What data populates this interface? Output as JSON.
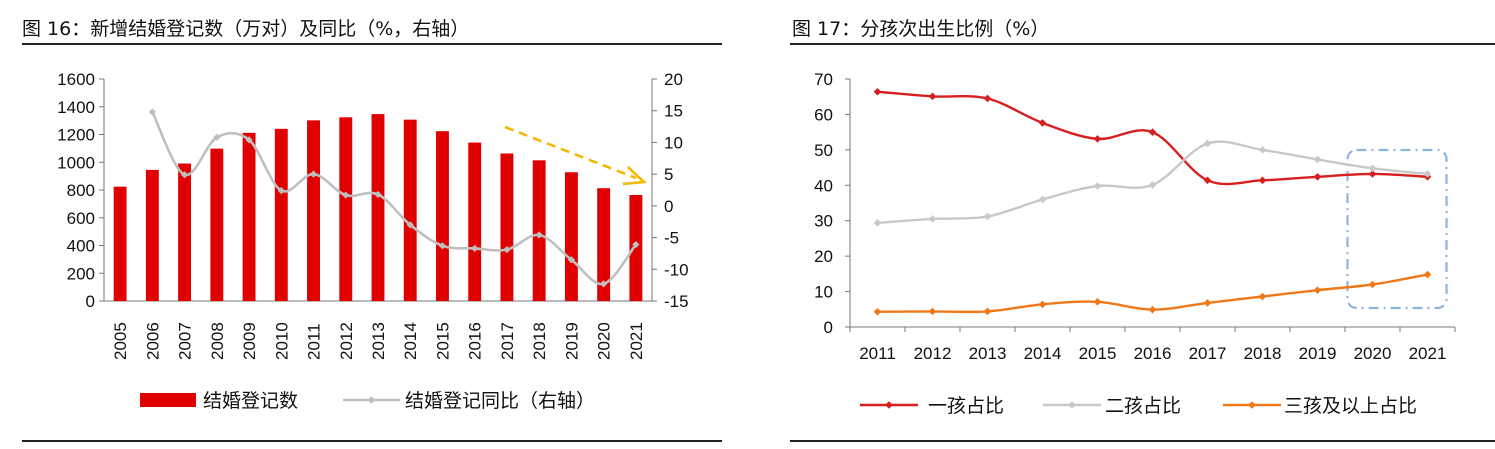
{
  "left": {
    "figure_title": "图 16：新增结婚登记数（万对）及同比（%，右轴）"
  },
  "right": {
    "figure_title": "图 17：分孩次出生比例（%）"
  },
  "chart_data": [
    {
      "type": "bar",
      "secondary_type": "line",
      "categories": [
        "2005",
        "2006",
        "2007",
        "2008",
        "2009",
        "2010",
        "2011",
        "2012",
        "2013",
        "2014",
        "2015",
        "2016",
        "2017",
        "2018",
        "2019",
        "2020",
        "2021"
      ],
      "series": [
        {
          "name": "结婚登记数",
          "axis": "left",
          "type": "bar",
          "color": "#e00000",
          "values": [
            824,
            945,
            991,
            1098,
            1212,
            1241,
            1302,
            1324,
            1347,
            1307,
            1224,
            1142,
            1063,
            1014,
            928,
            813,
            764
          ]
        },
        {
          "name": "结婚登记同比（右轴）",
          "axis": "right",
          "type": "line",
          "color": "#bfbfbf",
          "values": [
            null,
            14.8,
            4.9,
            10.8,
            10.4,
            2.4,
            5.0,
            1.7,
            1.8,
            -3.0,
            -6.3,
            -6.7,
            -6.9,
            -4.6,
            -8.5,
            -12.3,
            -6.1
          ]
        }
      ],
      "ylim_left": [
        0,
        1600
      ],
      "yticks_left": [
        "0",
        "200",
        "400",
        "600",
        "800",
        "1000",
        "1200",
        "1400",
        "1600"
      ],
      "ylim_right": [
        -15,
        20
      ],
      "yticks_right": [
        "-15",
        "-10",
        "-5",
        "0",
        "5",
        "10",
        "15",
        "20"
      ],
      "annotation": {
        "type": "dashed-arrow",
        "color": "#f5b800",
        "description": "downward trend arrow",
        "from_category": "2017",
        "to_category": "2021"
      },
      "legend_position": "bottom",
      "grid": false
    },
    {
      "type": "line",
      "categories": [
        "2011",
        "2012",
        "2013",
        "2014",
        "2015",
        "2016",
        "2017",
        "2018",
        "2019",
        "2020",
        "2021"
      ],
      "series": [
        {
          "name": "一孩占比",
          "color": "#d61f1f",
          "values": [
            66.4,
            65.1,
            64.5,
            57.6,
            53.1,
            55.0,
            41.4,
            41.4,
            42.4,
            43.2,
            42.4
          ]
        },
        {
          "name": "二孩占比",
          "color": "#c8c8c8",
          "values": [
            29.4,
            30.5,
            31.2,
            36.0,
            39.8,
            40.1,
            51.8,
            50.0,
            47.3,
            44.8,
            43.2
          ]
        },
        {
          "name": "三孩及以上占比",
          "color": "#f07818",
          "values": [
            4.3,
            4.4,
            4.4,
            6.4,
            7.1,
            4.9,
            6.8,
            8.6,
            10.4,
            12.0,
            14.8
          ]
        }
      ],
      "ylim": [
        0,
        70
      ],
      "yticks": [
        "0",
        "10",
        "20",
        "30",
        "40",
        "50",
        "60",
        "70"
      ],
      "annotation": {
        "type": "dash-dot-box",
        "color": "#8fb4dc",
        "description": "highlight 2020-2021",
        "categories": [
          "2020",
          "2021"
        ]
      },
      "legend_position": "bottom",
      "grid": false
    }
  ]
}
